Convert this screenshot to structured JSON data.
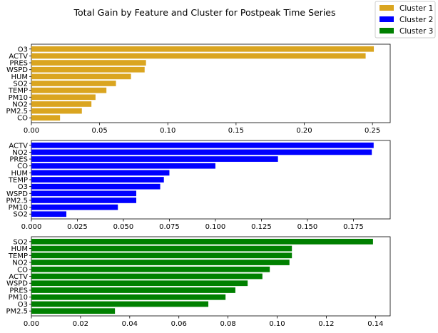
{
  "title": "Total Gain by Feature and Cluster for Postpeak Time Series",
  "legend": [
    {
      "label": "Cluster 1",
      "color": "#DAA520"
    },
    {
      "label": "Cluster 2",
      "color": "#0000FF"
    },
    {
      "label": "Cluster 3",
      "color": "#008000"
    }
  ],
  "chart_data": [
    {
      "type": "bar",
      "orientation": "horizontal",
      "series_name": "Cluster 1",
      "color": "#DAA520",
      "categories": [
        "O3",
        "ACTV",
        "PRES",
        "WSPD",
        "HUM",
        "SO2",
        "TEMP",
        "PM10",
        "NO2",
        "PM2.5",
        "CO"
      ],
      "values": [
        0.251,
        0.245,
        0.084,
        0.083,
        0.073,
        0.062,
        0.055,
        0.047,
        0.044,
        0.037,
        0.021
      ],
      "xlim": [
        0,
        0.263
      ],
      "xticks": [
        "0.00",
        "0.05",
        "0.10",
        "0.15",
        "0.20",
        "0.25"
      ],
      "xtick_values": [
        0,
        0.05,
        0.1,
        0.15,
        0.2,
        0.25
      ]
    },
    {
      "type": "bar",
      "orientation": "horizontal",
      "series_name": "Cluster 2",
      "color": "#0000FF",
      "categories": [
        "ACTV",
        "NO2",
        "PRES",
        "CO",
        "HUM",
        "TEMP",
        "O3",
        "WSPD",
        "PM2.5",
        "PM10",
        "SO2"
      ],
      "values": [
        0.186,
        0.185,
        0.134,
        0.1,
        0.075,
        0.072,
        0.07,
        0.057,
        0.057,
        0.047,
        0.019
      ],
      "xlim": [
        0,
        0.195
      ],
      "xticks": [
        "0.000",
        "0.025",
        "0.050",
        "0.075",
        "0.100",
        "0.125",
        "0.150",
        "0.175"
      ],
      "xtick_values": [
        0,
        0.025,
        0.05,
        0.075,
        0.1,
        0.125,
        0.15,
        0.175
      ]
    },
    {
      "type": "bar",
      "orientation": "horizontal",
      "series_name": "Cluster 3",
      "color": "#008000",
      "categories": [
        "SO2",
        "HUM",
        "TEMP",
        "NO2",
        "CO",
        "ACTV",
        "WSPD",
        "PRES",
        "PM10",
        "O3",
        "PM2.5"
      ],
      "values": [
        0.139,
        0.106,
        0.106,
        0.105,
        0.097,
        0.094,
        0.088,
        0.083,
        0.079,
        0.072,
        0.034
      ],
      "xlim": [
        0,
        0.146
      ],
      "xticks": [
        "0.00",
        "0.02",
        "0.04",
        "0.06",
        "0.08",
        "0.10",
        "0.12",
        "0.14"
      ],
      "xtick_values": [
        0,
        0.02,
        0.04,
        0.06,
        0.08,
        0.1,
        0.12,
        0.14
      ]
    }
  ]
}
